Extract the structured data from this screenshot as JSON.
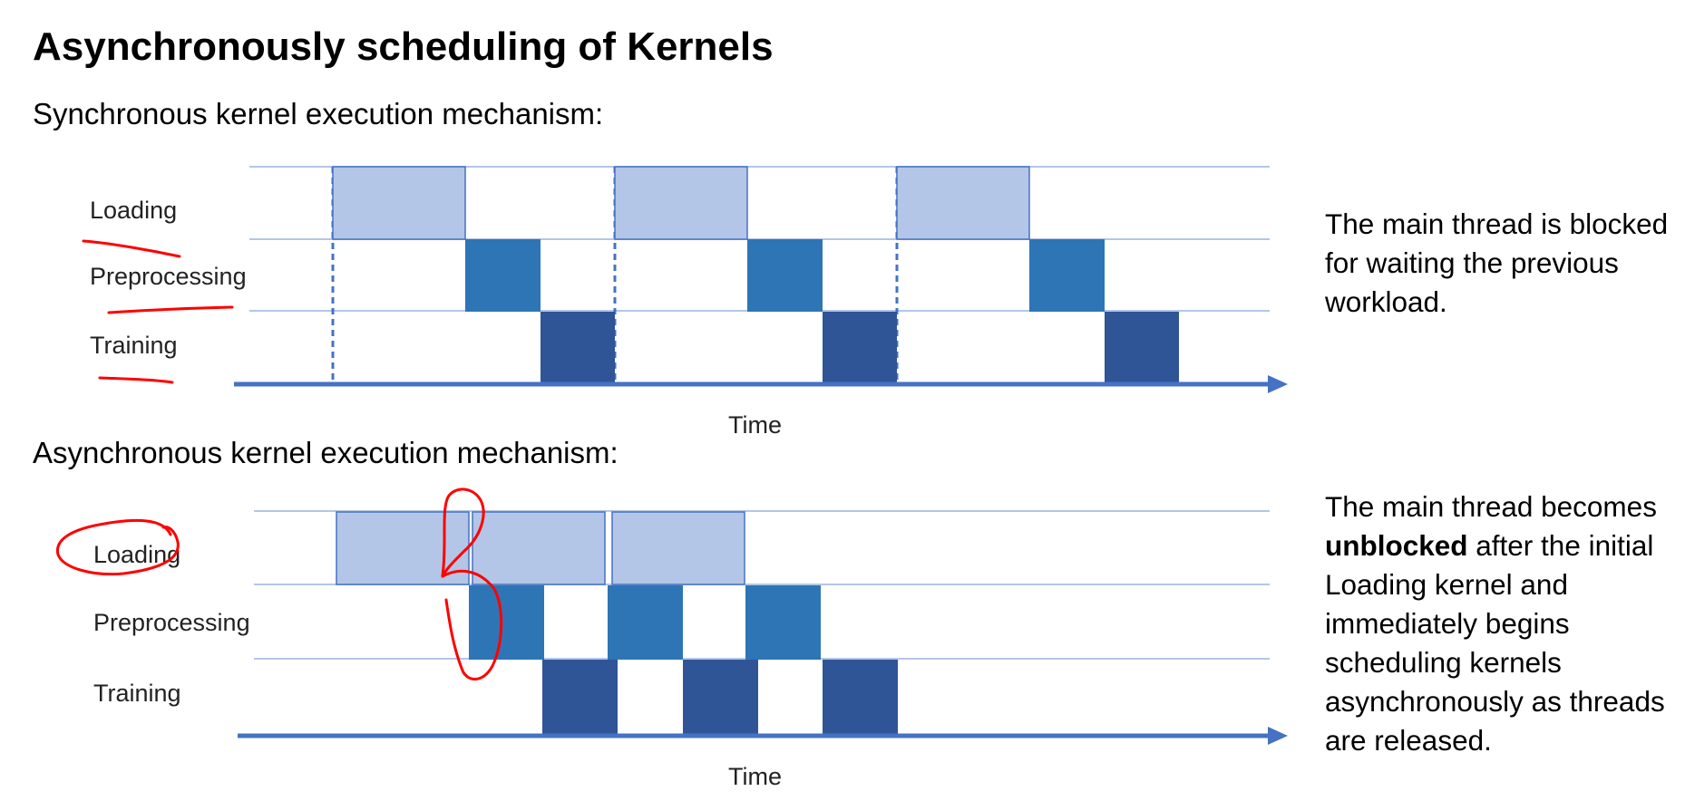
{
  "title": "Asynchronously scheduling of Kernels",
  "sync": {
    "heading": "Synchronous kernel execution mechanism:",
    "rows": [
      "Loading",
      "Preprocessing",
      "Training"
    ],
    "axis_label": "Time",
    "note": "The main thread is blocked for waiting the previous workload."
  },
  "async": {
    "heading": "Asynchronous kernel execution mechanism:",
    "rows": [
      "Loading",
      "Preprocessing",
      "Training"
    ],
    "axis_label": "Time",
    "note_pre": "The main thread becomes ",
    "note_bold": "unblocked",
    "note_post": " after the initial Loading kernel and immediately begins scheduling kernels asynchronously as threads are released."
  },
  "colors": {
    "loading": "#b4c6e7",
    "preprocessing": "#2e75b6",
    "training": "#2f5597",
    "axis": "#4472c4",
    "grid": "#b4c6e7",
    "annotation": "#ff0000"
  }
}
